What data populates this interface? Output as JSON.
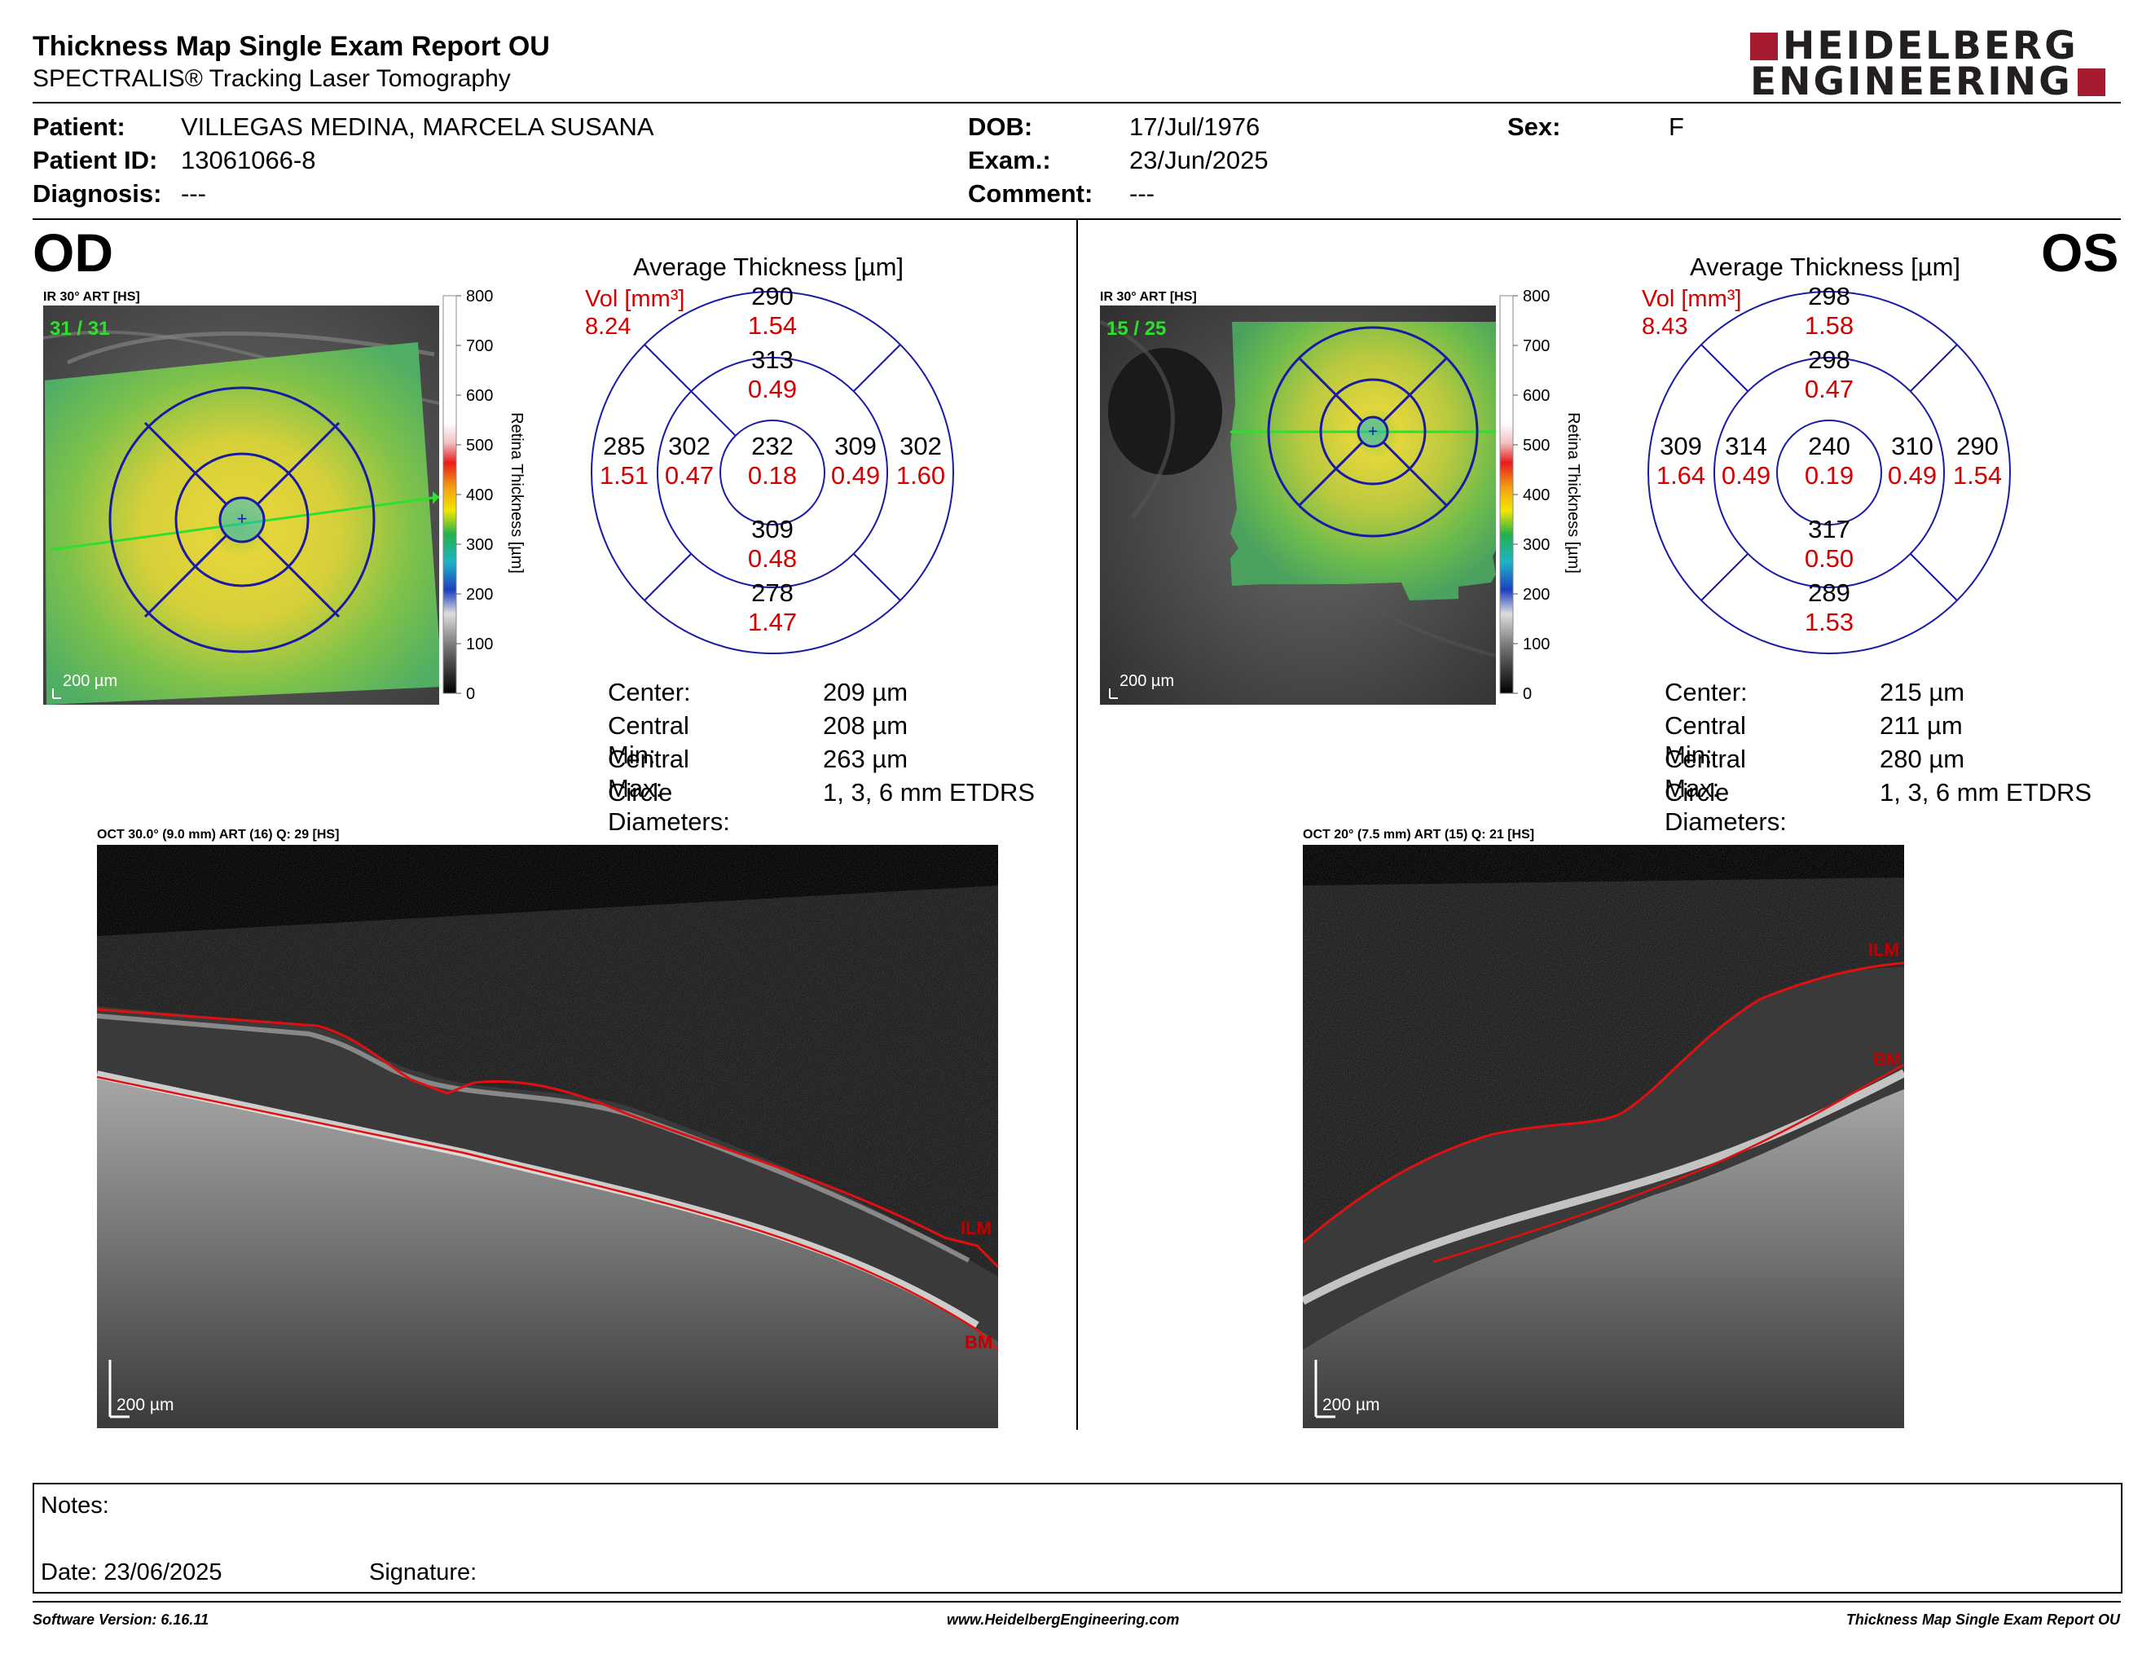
{
  "report": {
    "title": "Thickness Map Single Exam Report OU",
    "subtitle": "SPECTRALIS® Tracking Laser Tomography",
    "logo": {
      "line1": "HEIDELBERG",
      "line2": "ENGINEERING",
      "accent": "#a51c30"
    }
  },
  "patient": {
    "name_label": "Patient:",
    "name": "VILLEGAS MEDINA, MARCELA SUSANA",
    "id_label": "Patient ID:",
    "id": "13061066-8",
    "diagnosis_label": "Diagnosis:",
    "diagnosis": "---",
    "dob_label": "DOB:",
    "dob": "17/Jul/1976",
    "exam_label": "Exam.:",
    "exam": "23/Jun/2025",
    "comment_label": "Comment:",
    "comment": "---",
    "sex_label": "Sex:",
    "sex": "F"
  },
  "scale": {
    "ticks": [
      "800",
      "700",
      "600",
      "500",
      "400",
      "300",
      "200",
      "100",
      "0"
    ],
    "label": "Retina Thickness [µm]"
  },
  "od": {
    "eye": "OD",
    "ir_caption": "IR 30° ART [HS]",
    "ir_count": "31 / 31",
    "ir_scalebar": "200 µm",
    "avg_title": "Average Thickness [µm]",
    "vol_label": "Vol [mm³]",
    "vol_total": "8.24",
    "sectors": {
      "outer_top": {
        "t": "290",
        "v": "1.54"
      },
      "inner_top": {
        "t": "313",
        "v": "0.49"
      },
      "outer_left": {
        "t": "285",
        "v": "1.51"
      },
      "inner_left": {
        "t": "302",
        "v": "0.47"
      },
      "center": {
        "t": "232",
        "v": "0.18"
      },
      "inner_right": {
        "t": "309",
        "v": "0.49"
      },
      "outer_right": {
        "t": "302",
        "v": "1.60"
      },
      "inner_bottom": {
        "t": "309",
        "v": "0.48"
      },
      "outer_bottom": {
        "t": "278",
        "v": "1.47"
      }
    },
    "stats": [
      {
        "label": "Center:",
        "value": "209 µm"
      },
      {
        "label": "Central Min:",
        "value": "208 µm"
      },
      {
        "label": "Central Max:",
        "value": "263 µm"
      },
      {
        "label": "Circle Diameters:",
        "value": "1, 3, 6 mm ETDRS"
      }
    ],
    "oct_caption": "OCT 30.0° (9.0 mm) ART (16) Q: 29 [HS]",
    "oct_scalebar": "200 µm",
    "ilm": "ILM",
    "bm": "BM"
  },
  "os": {
    "eye": "OS",
    "ir_caption": "IR 30° ART [HS]",
    "ir_count": "15 / 25",
    "ir_scalebar": "200 µm",
    "avg_title": "Average Thickness [µm]",
    "vol_label": "Vol [mm³]",
    "vol_total": "8.43",
    "sectors": {
      "outer_top": {
        "t": "298",
        "v": "1.58"
      },
      "inner_top": {
        "t": "298",
        "v": "0.47"
      },
      "outer_left": {
        "t": "309",
        "v": "1.64"
      },
      "inner_left": {
        "t": "314",
        "v": "0.49"
      },
      "center": {
        "t": "240",
        "v": "0.19"
      },
      "inner_right": {
        "t": "310",
        "v": "0.49"
      },
      "outer_right": {
        "t": "290",
        "v": "1.54"
      },
      "inner_bottom": {
        "t": "317",
        "v": "0.50"
      },
      "outer_bottom": {
        "t": "289",
        "v": "1.53"
      }
    },
    "stats": [
      {
        "label": "Center:",
        "value": "215 µm"
      },
      {
        "label": "Central Min:",
        "value": "211 µm"
      },
      {
        "label": "Central Max:",
        "value": "280 µm"
      },
      {
        "label": "Circle Diameters:",
        "value": "1, 3, 6 mm ETDRS"
      }
    ],
    "oct_caption": "OCT 20° (7.5 mm) ART (15) Q: 21 [HS]",
    "oct_scalebar": "200 µm",
    "ilm": "ILM",
    "bm": "BM"
  },
  "notes": {
    "label": "Notes:",
    "date": "Date: 23/06/2025",
    "signature": "Signature:"
  },
  "footer": {
    "software": "Software Version: 6.16.11",
    "website": "www.HeidelbergEngineering.com",
    "report": "Thickness Map Single Exam Report OU"
  },
  "colors": {
    "sector_value": "#d40000",
    "grid": "#1a1aa6",
    "ilm_line": "#e01010"
  }
}
